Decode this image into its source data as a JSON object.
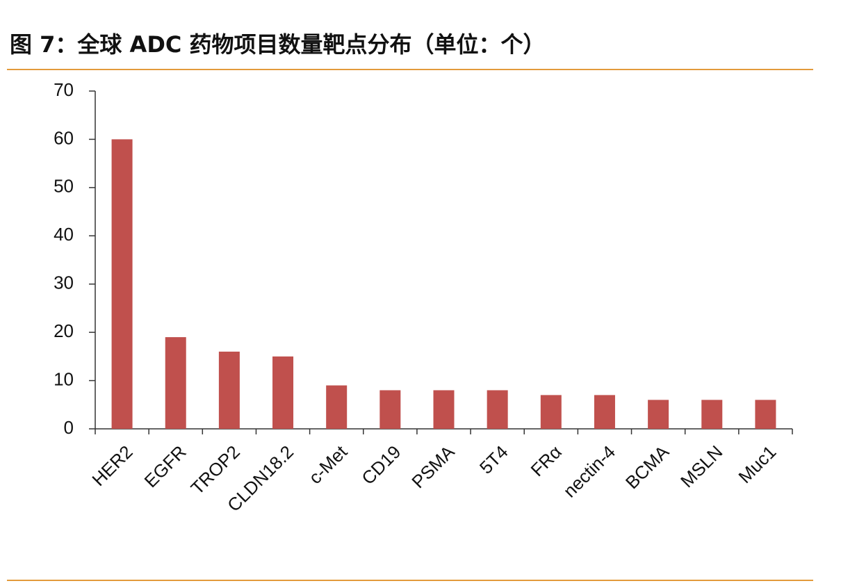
{
  "chart_data": {
    "type": "bar",
    "title": "图 7：全球 ADC 药物项目数量靶点分布（单位：个）",
    "categories": [
      "HER2",
      "EGFR",
      "TROP2",
      "CLDN18.2",
      "c-Met",
      "CD19",
      "PSMA",
      "5T4",
      "FRα",
      "nectin-4",
      "BCMA",
      "MSLN",
      "Muc1"
    ],
    "values": [
      60,
      19,
      16,
      15,
      9,
      8,
      8,
      8,
      7,
      7,
      6,
      6,
      6
    ],
    "color": "#c0504d",
    "ylim": [
      0,
      70
    ],
    "yticks": [
      0,
      10,
      20,
      30,
      40,
      50,
      60,
      70
    ],
    "grid": false
  }
}
